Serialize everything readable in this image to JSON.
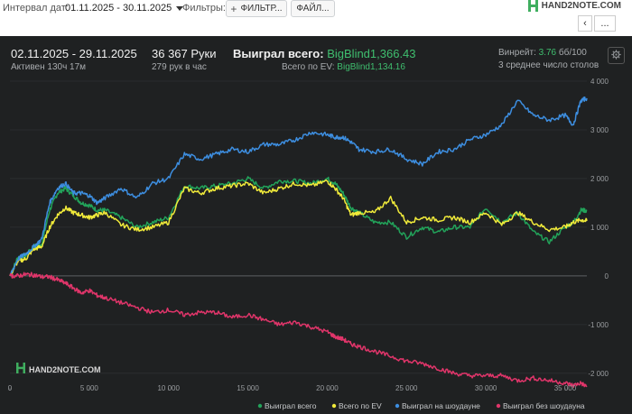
{
  "toolbar": {
    "date_label": "Интервал дат:",
    "date_range": "01.11.2025 - 30.11.2025",
    "filters_label": "Фильтры:",
    "filter_button": "ФИЛЬТР...",
    "files_button": "ФАЙЛ...",
    "logo_text": "HAND2NOTE.COM",
    "back_glyph": "‹",
    "more_glyph": "..."
  },
  "stats": {
    "period": "02.11.2025 - 29.11.2025",
    "active": "Активен 130ч 17м",
    "hands": "36 367 Руки",
    "hands_per_hour": "279 рук в час",
    "won_total_label": "Выиграл всего:",
    "won_total_value": "BigBlind1,366.43",
    "ev_label": "Всего по EV:",
    "ev_value": "BigBlind1,134.16",
    "winrate_label": "Винрейт:",
    "winrate_value": "3.76",
    "winrate_suffix": "бб/100",
    "avg_tables": "3 среднее число столов"
  },
  "chart_data": {
    "type": "line",
    "x_ticks": [
      "0",
      "5 000",
      "10 000",
      "15 000",
      "20 000",
      "25 000",
      "30 000",
      "35 000"
    ],
    "y_ticks": [
      "4 000",
      "3 000",
      "2 000",
      "1 000",
      "0",
      "-1 000",
      "-2 000"
    ],
    "xlim": [
      0,
      36367
    ],
    "ylim": [
      -2300,
      4000
    ],
    "watermark": "HAND2NOTE.COM",
    "colors": {
      "won": "#22a35a",
      "ev": "#f0ea3a",
      "showdown": "#3d8ee0",
      "non_showdown": "#e0356a"
    },
    "x": [
      0,
      500,
      1000,
      1500,
      2000,
      2500,
      3000,
      3500,
      4000,
      4500,
      5000,
      5500,
      6000,
      7000,
      8000,
      9000,
      10000,
      11000,
      12000,
      13000,
      14000,
      15000,
      16000,
      17000,
      18000,
      19000,
      20000,
      20500,
      21000,
      21500,
      22000,
      23000,
      24000,
      25000,
      26000,
      27000,
      28000,
      29000,
      30000,
      31000,
      32000,
      33000,
      34000,
      35000,
      35500,
      36000,
      36367
    ],
    "series": [
      {
        "name": "Выиграл всего",
        "color_key": "won",
        "values": [
          0,
          380,
          420,
          600,
          650,
          1350,
          1700,
          1800,
          1650,
          1500,
          1450,
          1350,
          1350,
          1200,
          1000,
          1100,
          1200,
          1850,
          1800,
          1850,
          1900,
          2000,
          1800,
          1950,
          1950,
          1900,
          2000,
          1900,
          1700,
          1400,
          1300,
          1100,
          1100,
          800,
          1000,
          900,
          1000,
          1000,
          1400,
          1100,
          1300,
          900,
          700,
          1000,
          1100,
          1350,
          1340
        ]
      },
      {
        "name": "Всего по EV",
        "color_key": "ev",
        "values": [
          0,
          300,
          350,
          550,
          600,
          1000,
          1250,
          1400,
          1300,
          1250,
          1200,
          1250,
          1300,
          1050,
          950,
          1000,
          1100,
          1800,
          1700,
          1800,
          1850,
          1900,
          1700,
          1800,
          1900,
          1850,
          1950,
          1800,
          1600,
          1250,
          1300,
          1300,
          1600,
          1100,
          1200,
          1150,
          1200,
          1100,
          1300,
          1050,
          1300,
          1100,
          950,
          1000,
          1100,
          1150,
          1130
        ]
      },
      {
        "name": "Выиграл на шоудауне",
        "color_key": "showdown",
        "values": [
          0,
          350,
          450,
          600,
          750,
          1500,
          1800,
          1900,
          1700,
          1700,
          1650,
          1500,
          1600,
          1800,
          1600,
          1900,
          2000,
          2500,
          2400,
          2500,
          2600,
          2550,
          2700,
          2700,
          2800,
          2950,
          2900,
          2850,
          2850,
          2750,
          2600,
          2550,
          2600,
          2400,
          2300,
          2550,
          2600,
          2800,
          2900,
          3100,
          3600,
          3300,
          3200,
          3300,
          3100,
          3600,
          3650
        ]
      },
      {
        "name": "Выиграл без шоудауна",
        "color_key": "non_showdown",
        "values": [
          0,
          0,
          30,
          20,
          -20,
          -20,
          -80,
          -150,
          -250,
          -350,
          -300,
          -400,
          -450,
          -550,
          -650,
          -750,
          -700,
          -800,
          -750,
          -750,
          -850,
          -800,
          -900,
          -1000,
          -950,
          -1050,
          -1150,
          -1250,
          -1300,
          -1400,
          -1450,
          -1550,
          -1650,
          -1750,
          -1800,
          -1900,
          -2000,
          -2050,
          -2050,
          -2050,
          -2150,
          -2100,
          -2150,
          -2200,
          -2250,
          -2200,
          -2280
        ]
      }
    ]
  }
}
